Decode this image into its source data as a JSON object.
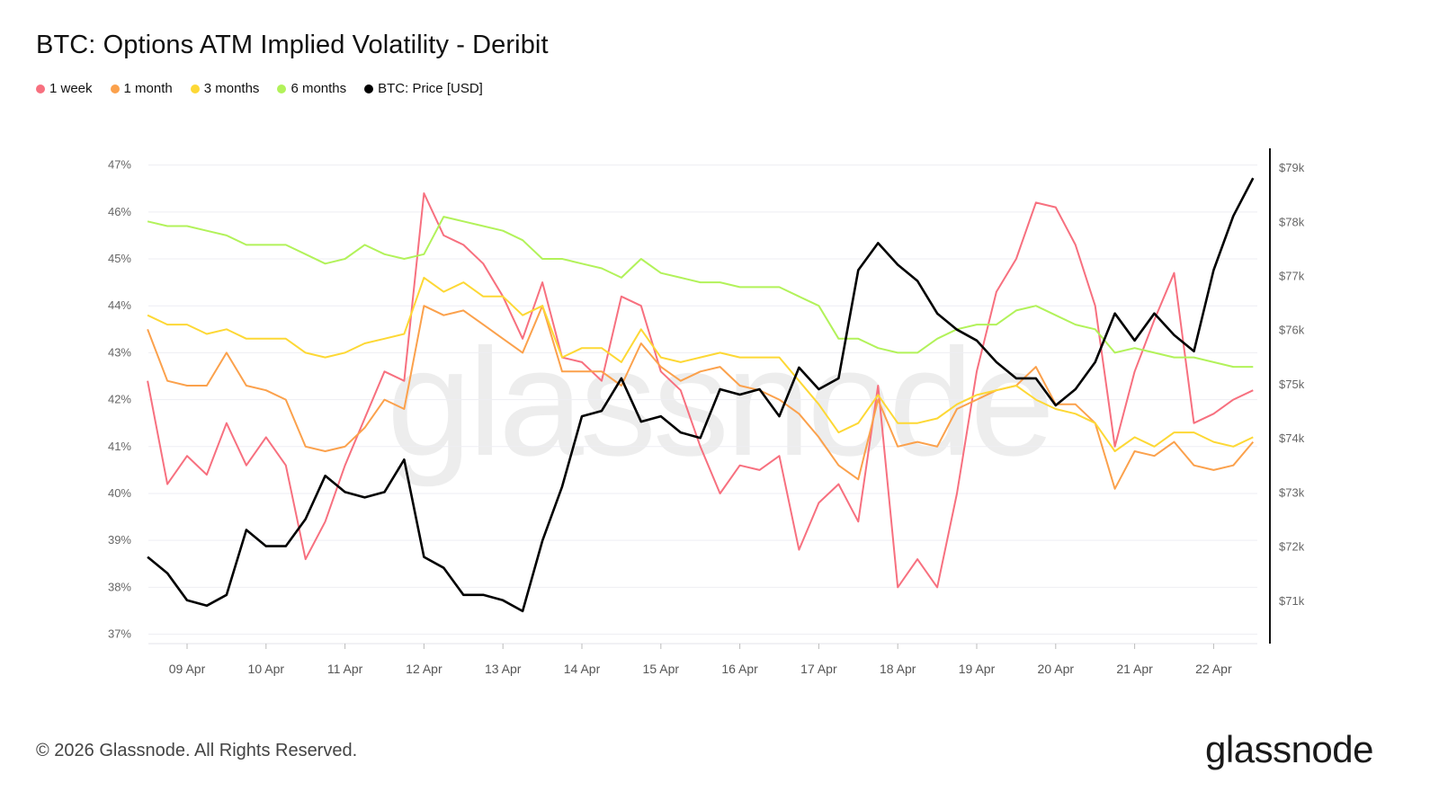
{
  "title": "BTC: Options ATM Implied Volatility - Deribit",
  "footer": "© 2026 Glassnode. All Rights Reserved.",
  "logo": "glassnode",
  "watermark": "glassnode",
  "chart_data": {
    "type": "line",
    "title": "BTC: Options ATM Implied Volatility - Deribit",
    "legend_position": "top-left",
    "grid": true,
    "x_ticks": [
      "09 Apr",
      "10 Apr",
      "11 Apr",
      "12 Apr",
      "13 Apr",
      "14 Apr",
      "15 Apr",
      "16 Apr",
      "17 Apr",
      "18 Apr",
      "19 Apr",
      "20 Apr",
      "21 Apr",
      "22 Apr"
    ],
    "y_ticks": [
      "47%",
      "46%",
      "45%",
      "44%",
      "43%",
      "42%",
      "41%",
      "40%",
      "39%",
      "38%",
      "37%"
    ],
    "y2_ticks": [
      "$79k",
      "$78k",
      "$77k",
      "$76k",
      "$75k",
      "$74k",
      "$73k",
      "$72k",
      "$71k"
    ],
    "ylim": [
      36.8,
      47.3
    ],
    "y2lim": [
      70.2,
      79.3
    ],
    "x": [
      "Apr 08 12:00",
      "Apr 08 18:00",
      "Apr 09 00:00",
      "Apr 09 06:00",
      "Apr 09 12:00",
      "Apr 09 18:00",
      "Apr 10 00:00",
      "Apr 10 06:00",
      "Apr 10 12:00",
      "Apr 10 18:00",
      "Apr 11 00:00",
      "Apr 11 06:00",
      "Apr 11 12:00",
      "Apr 11 18:00",
      "Apr 12 00:00",
      "Apr 12 06:00",
      "Apr 12 12:00",
      "Apr 12 18:00",
      "Apr 13 00:00",
      "Apr 13 06:00",
      "Apr 13 12:00",
      "Apr 13 18:00",
      "Apr 14 00:00",
      "Apr 14 06:00",
      "Apr 14 12:00",
      "Apr 14 18:00",
      "Apr 15 00:00",
      "Apr 15 06:00",
      "Apr 15 12:00",
      "Apr 15 18:00",
      "Apr 16 00:00",
      "Apr 16 06:00",
      "Apr 16 12:00",
      "Apr 16 18:00",
      "Apr 17 00:00",
      "Apr 17 06:00",
      "Apr 17 12:00",
      "Apr 17 18:00",
      "Apr 18 00:00",
      "Apr 18 06:00",
      "Apr 18 12:00",
      "Apr 18 18:00",
      "Apr 19 00:00",
      "Apr 19 06:00",
      "Apr 19 12:00",
      "Apr 19 18:00",
      "Apr 20 00:00",
      "Apr 20 06:00",
      "Apr 20 12:00",
      "Apr 20 18:00",
      "Apr 21 00:00",
      "Apr 21 06:00",
      "Apr 21 12:00",
      "Apr 21 18:00",
      "Apr 22 00:00",
      "Apr 22 06:00",
      "Apr 22 12:00"
    ],
    "series": [
      {
        "name": "1 week",
        "color": "#f7707f",
        "axis": "left",
        "unit": "%",
        "values": [
          42.4,
          40.2,
          40.8,
          40.4,
          41.5,
          40.6,
          41.2,
          40.6,
          38.6,
          39.4,
          40.6,
          41.6,
          42.6,
          42.4,
          46.4,
          45.5,
          45.3,
          44.9,
          44.2,
          43.3,
          44.5,
          42.9,
          42.8,
          42.4,
          44.2,
          44.0,
          42.6,
          42.2,
          41.0,
          40.0,
          40.6,
          40.5,
          40.8,
          38.8,
          39.8,
          40.2,
          39.4,
          42.3,
          38.0,
          38.6,
          38.0,
          40.0,
          42.6,
          44.3,
          45.0,
          46.2,
          46.1,
          45.3,
          44.0,
          41.0,
          42.6,
          43.7,
          44.7,
          41.5,
          41.7,
          42.0,
          42.2
        ]
      },
      {
        "name": "1 month",
        "color": "#fba14c",
        "axis": "left",
        "unit": "%",
        "values": [
          43.5,
          42.4,
          42.3,
          42.3,
          43.0,
          42.3,
          42.2,
          42.0,
          41.0,
          40.9,
          41.0,
          41.4,
          42.0,
          41.8,
          44.0,
          43.8,
          43.9,
          43.6,
          43.3,
          43.0,
          44.0,
          42.6,
          42.6,
          42.6,
          42.3,
          43.2,
          42.7,
          42.4,
          42.6,
          42.7,
          42.3,
          42.2,
          42.0,
          41.7,
          41.2,
          40.6,
          40.3,
          42.0,
          41.0,
          41.1,
          41.0,
          41.8,
          42.0,
          42.2,
          42.3,
          42.7,
          41.9,
          41.9,
          41.5,
          40.1,
          40.9,
          40.8,
          41.1,
          40.6,
          40.5,
          40.6,
          41.1
        ]
      },
      {
        "name": "3 months",
        "color": "#fdd835",
        "axis": "left",
        "unit": "%",
        "values": [
          43.8,
          43.6,
          43.6,
          43.4,
          43.5,
          43.3,
          43.3,
          43.3,
          43.0,
          42.9,
          43.0,
          43.2,
          43.3,
          43.4,
          44.6,
          44.3,
          44.5,
          44.2,
          44.2,
          43.8,
          44.0,
          42.9,
          43.1,
          43.1,
          42.8,
          43.5,
          42.9,
          42.8,
          42.9,
          43.0,
          42.9,
          42.9,
          42.9,
          42.4,
          41.9,
          41.3,
          41.5,
          42.1,
          41.5,
          41.5,
          41.6,
          41.9,
          42.1,
          42.2,
          42.3,
          42.0,
          41.8,
          41.7,
          41.5,
          40.9,
          41.2,
          41.0,
          41.3,
          41.3,
          41.1,
          41.0,
          41.2
        ]
      },
      {
        "name": "6 months",
        "color": "#b2f25a",
        "axis": "left",
        "unit": "%",
        "values": [
          45.8,
          45.7,
          45.7,
          45.6,
          45.5,
          45.3,
          45.3,
          45.3,
          45.1,
          44.9,
          45.0,
          45.3,
          45.1,
          45.0,
          45.1,
          45.9,
          45.8,
          45.7,
          45.6,
          45.4,
          45.0,
          45.0,
          44.9,
          44.8,
          44.6,
          45.0,
          44.7,
          44.6,
          44.5,
          44.5,
          44.4,
          44.4,
          44.4,
          44.2,
          44.0,
          43.3,
          43.3,
          43.1,
          43.0,
          43.0,
          43.3,
          43.5,
          43.6,
          43.6,
          43.9,
          44.0,
          43.8,
          43.6,
          43.5,
          43.0,
          43.1,
          43.0,
          42.9,
          42.9,
          42.8,
          42.7,
          42.7
        ]
      },
      {
        "name": "BTC: Price [USD]",
        "color": "#000000",
        "axis": "right",
        "unit": "$k",
        "values": [
          71.8,
          71.5,
          71.0,
          70.9,
          71.1,
          72.3,
          72.0,
          72.0,
          72.5,
          73.3,
          73.0,
          72.9,
          73.0,
          73.6,
          71.8,
          71.6,
          71.1,
          71.1,
          71.0,
          70.8,
          72.1,
          73.1,
          74.4,
          74.5,
          75.1,
          74.3,
          74.4,
          74.1,
          74.0,
          74.9,
          74.8,
          74.9,
          74.4,
          75.3,
          74.9,
          75.1,
          77.1,
          77.6,
          77.2,
          76.9,
          76.3,
          76.0,
          75.8,
          75.4,
          75.1,
          75.1,
          74.6,
          74.9,
          75.4,
          76.3,
          75.8,
          76.3,
          75.9,
          75.6,
          77.1,
          78.1,
          78.8
        ]
      }
    ]
  }
}
